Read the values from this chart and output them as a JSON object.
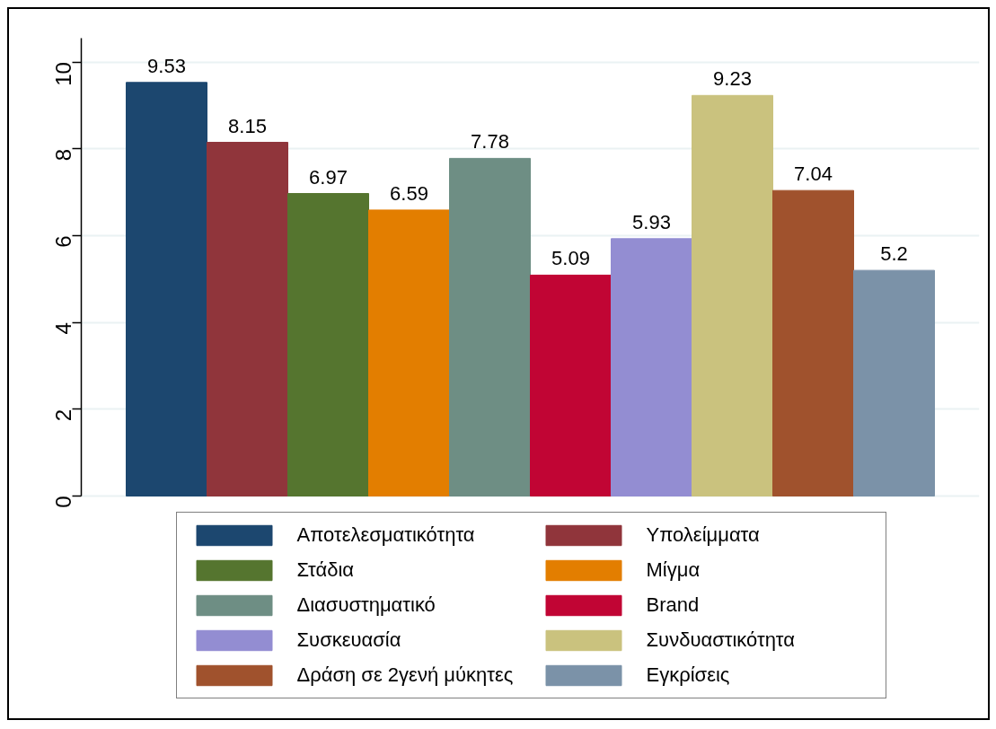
{
  "chart_data": {
    "type": "bar",
    "categories": [
      null
    ],
    "series": [
      {
        "name": "Αποτελεσματικότητα",
        "color": "#1c476f",
        "values": [
          9.53
        ]
      },
      {
        "name": "Υπολείμματα",
        "color": "#90353b",
        "values": [
          8.15
        ]
      },
      {
        "name": "Στάδια",
        "color": "#55752f",
        "values": [
          6.97
        ]
      },
      {
        "name": "Μίγμα",
        "color": "#e37e00",
        "values": [
          6.59
        ]
      },
      {
        "name": "Διασυστηματικό",
        "color": "#6e8e84",
        "values": [
          7.78
        ]
      },
      {
        "name": "Brand",
        "color": "#c10534",
        "values": [
          5.09
        ]
      },
      {
        "name": "Συσκευασία",
        "color": "#938dd2",
        "values": [
          5.93
        ]
      },
      {
        "name": "Συνδυαστικότητα",
        "color": "#cac27e",
        "values": [
          9.23
        ]
      },
      {
        "name": "Δράση σε 2γενή μύκητες",
        "color": "#a0522d",
        "values": [
          7.04
        ]
      },
      {
        "name": "Εγκρίσεις",
        "color": "#7b92a8",
        "values": [
          5.2
        ]
      }
    ],
    "ylim": [
      0,
      10.55
    ],
    "yticks": [
      0,
      2,
      4,
      6,
      8,
      10
    ],
    "grid": "y",
    "legend": "bottom",
    "tick_labels": "y",
    "data_labels": true
  }
}
